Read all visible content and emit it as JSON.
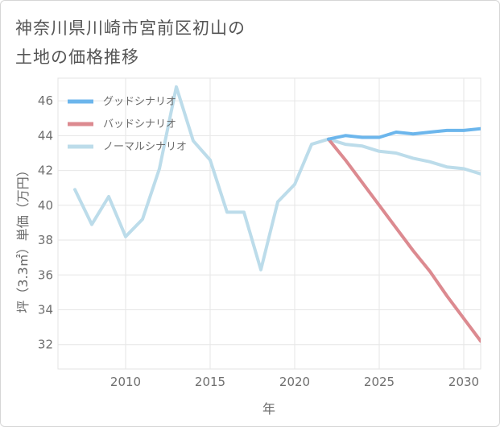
{
  "title": "神奈川県川崎市宮前区初山の\n土地の価格推移",
  "chart_data": {
    "type": "line",
    "title": "神奈川県川崎市宮前区初山の土地の価格推移",
    "xlabel": "年",
    "ylabel": "坪（3.3㎡）単価（万円）",
    "xlim": [
      2006,
      2031
    ],
    "ylim": [
      30.6,
      47.3
    ],
    "xticks": [
      2010,
      2015,
      2020,
      2025,
      2030
    ],
    "yticks": [
      32,
      34,
      36,
      38,
      40,
      42,
      44,
      46
    ],
    "grid": true,
    "legend_position": "top-left",
    "series": [
      {
        "name": "グッドシナリオ",
        "color": "#6cb6ec",
        "x": [
          2022,
          2023,
          2024,
          2025,
          2026,
          2027,
          2028,
          2029,
          2030,
          2031
        ],
        "y": [
          43.8,
          44.0,
          43.9,
          43.9,
          44.2,
          44.1,
          44.2,
          44.3,
          44.3,
          44.4
        ]
      },
      {
        "name": "バッドシナリオ",
        "color": "#dc8a90",
        "x": [
          2022,
          2023,
          2024,
          2025,
          2026,
          2027,
          2028,
          2029,
          2030,
          2031
        ],
        "y": [
          43.8,
          42.6,
          41.3,
          40.0,
          38.7,
          37.4,
          36.2,
          34.8,
          33.5,
          32.2
        ]
      },
      {
        "name": "ノーマルシナリオ",
        "color": "#bcdcea",
        "x": [
          2007,
          2008,
          2009,
          2010,
          2011,
          2012,
          2013,
          2014,
          2015,
          2016,
          2017,
          2018,
          2019,
          2020,
          2021,
          2022,
          2023,
          2024,
          2025,
          2026,
          2027,
          2028,
          2029,
          2030,
          2031
        ],
        "y": [
          40.9,
          38.9,
          40.5,
          38.2,
          39.2,
          42.1,
          46.8,
          43.7,
          42.6,
          39.6,
          39.6,
          36.3,
          40.2,
          41.2,
          43.5,
          43.8,
          43.5,
          43.4,
          43.1,
          43.0,
          42.7,
          42.5,
          42.2,
          42.1,
          41.8
        ]
      }
    ]
  }
}
